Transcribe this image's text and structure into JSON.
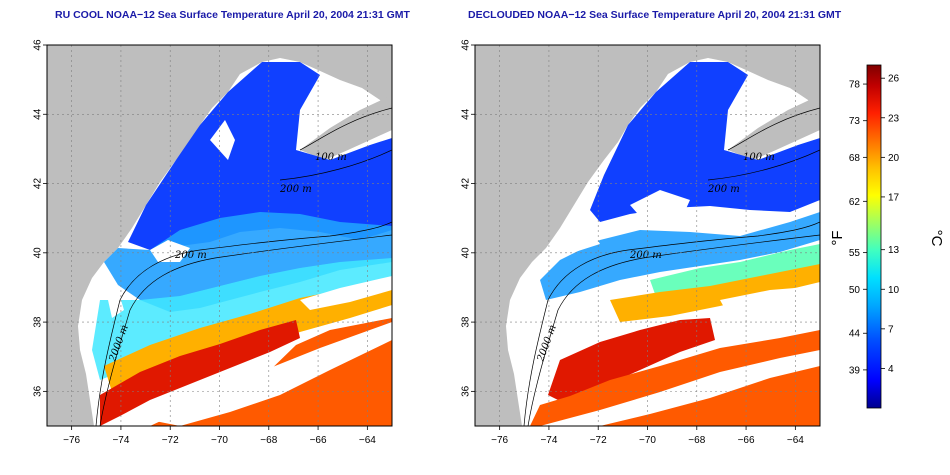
{
  "panels": [
    {
      "id": "left",
      "title": "RU COOL NOAA−12 Sea Surface Temperature April 20, 2004 21:31 GMT",
      "contour_labels": [
        "100 m",
        "200 m",
        "200 m",
        "2000 m"
      ]
    },
    {
      "id": "right",
      "title": "DECLOUDED NOAA−12 Sea Surface Temperature April 20, 2004 21:31 GMT",
      "contour_labels": [
        "100 m",
        "200 m",
        "200 m",
        "2000 m"
      ]
    }
  ],
  "axes": {
    "x_ticks": [
      "−76",
      "−74",
      "−72",
      "−70",
      "−68",
      "−66",
      "−64"
    ],
    "x_values": [
      -76,
      -74,
      -72,
      -70,
      -68,
      -66,
      -64
    ],
    "xlim": [
      -77,
      -63
    ],
    "y_ticks": [
      "36",
      "38",
      "40",
      "42",
      "44",
      "46"
    ],
    "y_values": [
      36,
      38,
      40,
      42,
      44,
      46
    ],
    "ylim": [
      35,
      46
    ],
    "grid": "dotted"
  },
  "colorbar": {
    "fahrenheit_label": "°F",
    "celsius_label": "°C",
    "fahrenheit_ticks": [
      "78",
      "73",
      "68",
      "62",
      "55",
      "50",
      "44",
      "39"
    ],
    "fahrenheit_values": [
      78,
      73,
      68,
      62,
      55,
      50,
      44,
      39
    ],
    "celsius_ticks": [
      "26",
      "23",
      "20",
      "17",
      "13",
      "10",
      "7",
      "4"
    ],
    "celsius_values": [
      26,
      23,
      20,
      17,
      13,
      10,
      7,
      4
    ],
    "range_c": [
      1,
      27
    ],
    "colors": [
      "#00008f",
      "#0000ff",
      "#0050ff",
      "#00a8ff",
      "#00e0ff",
      "#40ffc0",
      "#a0ff60",
      "#ffff00",
      "#ffc000",
      "#ff7000",
      "#ff2000",
      "#c00000",
      "#800000"
    ]
  },
  "colors": {
    "land": "#bebebe",
    "cloud": "#ffffff",
    "title": "#1a1aa8"
  }
}
